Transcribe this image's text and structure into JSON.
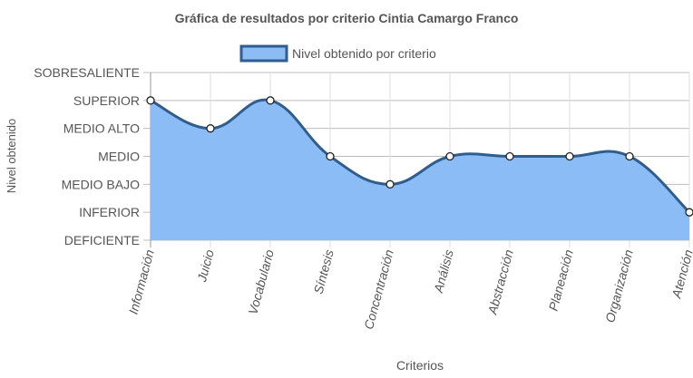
{
  "chart_data": {
    "type": "area",
    "title": "Gráfica de resultados por criterio Cintia Camargo Franco",
    "xlabel": "Criterios",
    "ylabel": "Nivel obtenido",
    "y_levels": [
      "DEFICIENTE",
      "INFERIOR",
      "MEDIO BAJO",
      "MEDIO",
      "MEDIO ALTO",
      "SUPERIOR",
      "SOBRESALIENTE"
    ],
    "ylim": [
      0,
      6
    ],
    "categories": [
      "Información",
      "Juicio",
      "Vocabulario",
      "Síntesis",
      "Concentración",
      "Análisis",
      "Abstracción",
      "Planeación",
      "Organización",
      "Atención"
    ],
    "series": [
      {
        "name": "Nivel obtenido por criterio",
        "values": [
          5,
          4,
          5,
          3,
          2,
          3,
          3,
          3,
          3,
          1
        ]
      }
    ],
    "legend_position": "top",
    "grid": true,
    "colors": {
      "fill": "#8bbcf6",
      "line": "#2f5d8e",
      "grid": "#bdbdbd",
      "text": "#555555"
    }
  }
}
